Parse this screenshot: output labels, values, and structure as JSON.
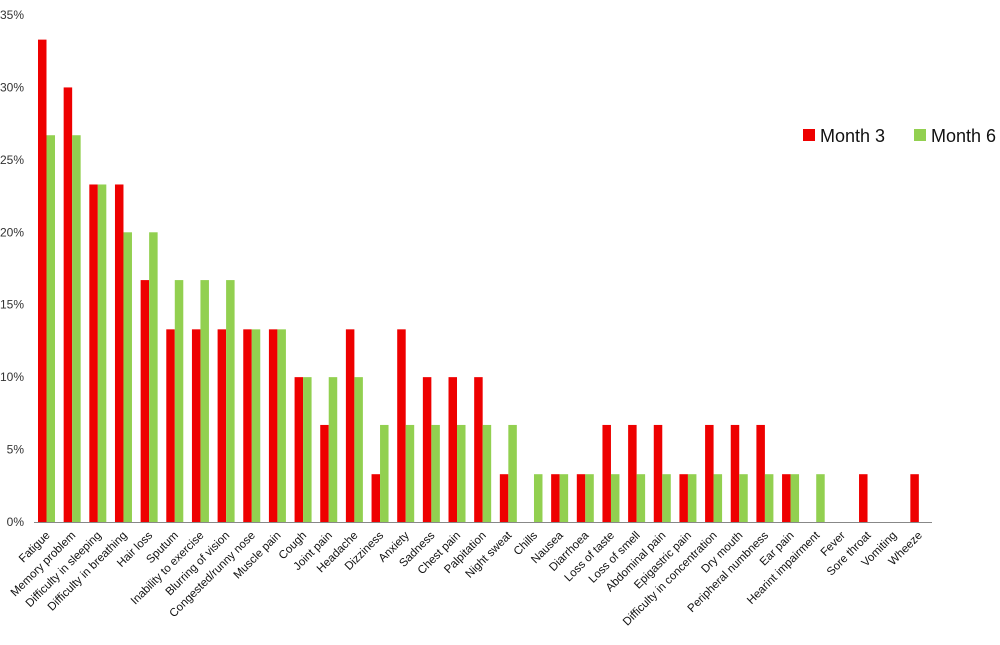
{
  "chart_data": {
    "type": "bar",
    "title": "",
    "xlabel": "",
    "ylabel": "",
    "ylim": [
      0,
      35
    ],
    "y_ticks": [
      "0%",
      "5%",
      "10%",
      "15%",
      "20%",
      "25%",
      "30%",
      "35%"
    ],
    "y_tick_values": [
      0,
      5,
      10,
      15,
      20,
      25,
      30,
      35
    ],
    "grid": false,
    "legend_position": "right",
    "categories": [
      "Fatigue",
      "Memory problem",
      "Difficulty in sleeping",
      "Difficulty in breathing",
      "Hair loss",
      "Sputum",
      "Inability to exercise",
      "Blurring of vision",
      "Congested/runny nose",
      "Muscle pain",
      "Cough",
      "Joint pain",
      "Headache",
      "Dizziness",
      "Anxiety",
      "Sadness",
      "Chest pain",
      "Palpitation",
      "Night sweat",
      "Chills",
      "Nausea",
      "Diarrhoea",
      "Loss of taste",
      "Loss of smell",
      "Abdominal pain",
      "Epigastric pain",
      "Difficulty in concentration",
      "Dry mouth",
      "Peripheral numbness",
      "Ear pain",
      "Hearint impairment",
      "Fever",
      "Sore throat",
      "Vomiting",
      "Wheeze"
    ],
    "series": [
      {
        "name": "Month 3",
        "color": "#ee0000",
        "values": [
          33.3,
          30.0,
          23.3,
          23.3,
          16.7,
          13.3,
          13.3,
          13.3,
          13.3,
          13.3,
          10.0,
          6.7,
          13.3,
          3.3,
          13.3,
          10.0,
          10.0,
          10.0,
          3.3,
          0,
          3.3,
          3.3,
          6.7,
          6.7,
          6.7,
          3.3,
          6.7,
          6.7,
          6.7,
          3.3,
          0,
          0,
          3.3,
          0,
          3.3
        ]
      },
      {
        "name": "Month 6",
        "color": "#92d050",
        "values": [
          26.7,
          26.7,
          23.3,
          20.0,
          20.0,
          16.7,
          16.7,
          16.7,
          13.3,
          13.3,
          10.0,
          10.0,
          10.0,
          6.7,
          6.7,
          6.7,
          6.7,
          6.7,
          6.7,
          3.3,
          3.3,
          3.3,
          3.3,
          3.3,
          3.3,
          3.3,
          3.3,
          3.3,
          3.3,
          3.3,
          3.3,
          0,
          0,
          0,
          0
        ]
      }
    ]
  }
}
